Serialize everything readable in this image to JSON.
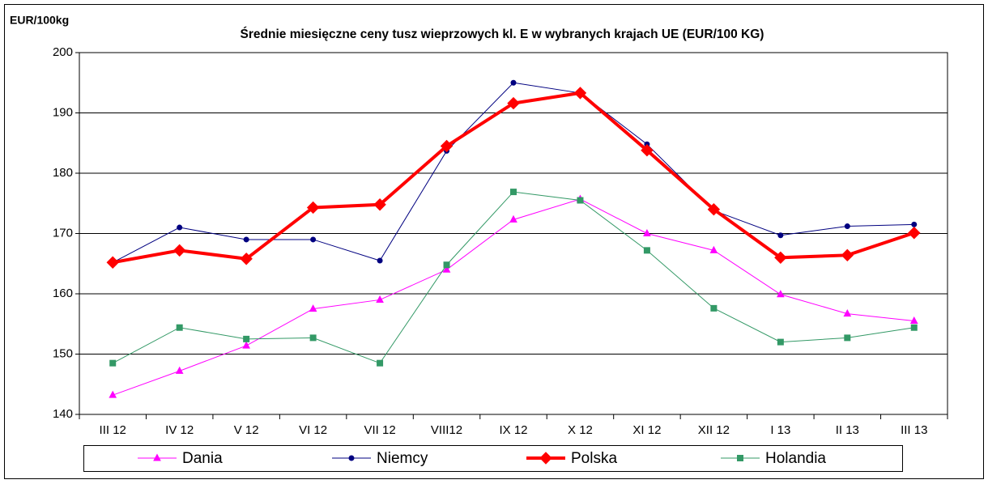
{
  "chart_data": {
    "type": "line",
    "title": "Średnie miesięczne ceny tusz wieprzowych kl. E w wybranych krajach UE (EUR/100 KG)",
    "y_label": "EUR/100kg",
    "categories": [
      "III 12",
      "IV 12",
      "V 12",
      "VI 12",
      "VII 12",
      "VIII12",
      "IX 12",
      "X 12",
      "XI 12",
      "XII 12",
      "I 13",
      "II 13",
      "III 13"
    ],
    "series": [
      {
        "name": "Dania",
        "color": "#ff00ff",
        "marker": "triangle",
        "width": 1,
        "values": [
          143.2,
          147.2,
          151.4,
          157.5,
          159,
          164,
          172.3,
          175.7,
          170,
          167.2,
          159.9,
          156.7,
          155.5
        ]
      },
      {
        "name": "Niemcy",
        "color": "#000080",
        "marker": "circle",
        "width": 1,
        "values": [
          165.2,
          171,
          169,
          169,
          165.5,
          183.7,
          195,
          193.3,
          184.8,
          173.8,
          169.7,
          171.2,
          171.5
        ]
      },
      {
        "name": "Polska",
        "color": "#ff0000",
        "marker": "diamond",
        "width": 4,
        "values": [
          165.2,
          167.2,
          165.8,
          174.3,
          174.8,
          184.5,
          191.6,
          193.3,
          183.8,
          174,
          166,
          166.4,
          170.1
        ]
      },
      {
        "name": "Holandia",
        "color": "#339966",
        "marker": "square",
        "width": 1,
        "values": [
          148.5,
          154.4,
          152.5,
          152.7,
          148.5,
          164.8,
          176.9,
          175.5,
          167.2,
          157.6,
          152,
          152.7,
          154.4
        ]
      }
    ],
    "ylim": [
      140,
      200
    ],
    "yticks": [
      140,
      150,
      160,
      170,
      180,
      190,
      200
    ],
    "grid": true,
    "legend": "bottom"
  }
}
